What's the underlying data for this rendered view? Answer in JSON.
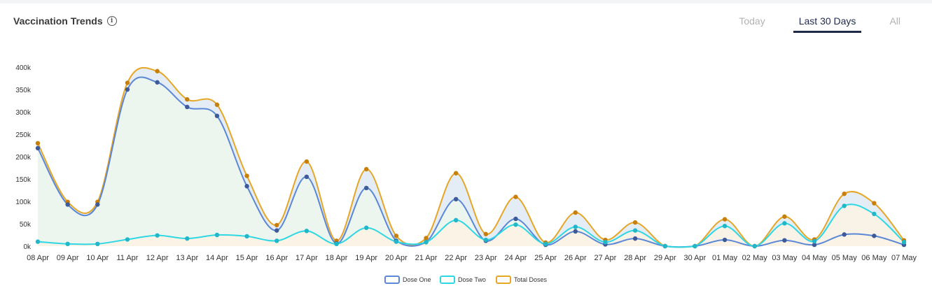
{
  "header": {
    "title": "Vaccination Trends",
    "info_icon": "info-icon",
    "tabs": [
      {
        "label": "Today",
        "active": false
      },
      {
        "label": "Last 30 Days",
        "active": true
      },
      {
        "label": "All",
        "active": false
      }
    ]
  },
  "colors": {
    "dose_one": "#5b87d6",
    "dose_two": "#2fd6e3",
    "total": "#e6a626",
    "dose_one_marker": "#3d5a99",
    "dose_two_marker": "#20b8c8",
    "total_marker": "#c77f0a",
    "fill_green": "#eef7ec",
    "fill_orange": "#fdf3e4",
    "fill_blue": "#dfeaf3"
  },
  "chart_data": {
    "type": "area",
    "categories": [
      "08 Apr",
      "09 Apr",
      "10 Apr",
      "11 Apr",
      "12 Apr",
      "13 Apr",
      "14 Apr",
      "15 Apr",
      "16 Apr",
      "17 Apr",
      "18 Apr",
      "19 Apr",
      "20 Apr",
      "21 Apr",
      "22 Apr",
      "23 Apr",
      "24 Apr",
      "25 Apr",
      "26 Apr",
      "27 Apr",
      "28 Apr",
      "29 Apr",
      "30 Apr",
      "01 May",
      "02 May",
      "03 May",
      "04 May",
      "05 May",
      "06 May",
      "07 May"
    ],
    "yticks": [
      "0k",
      "50k",
      "100k",
      "150k",
      "200k",
      "250k",
      "300k",
      "350k",
      "400k"
    ],
    "ylim": [
      0,
      400000
    ],
    "series": [
      {
        "name": "Dose One",
        "values": [
          219000,
          93000,
          93000,
          350000,
          366000,
          311000,
          291000,
          134000,
          35000,
          155000,
          6000,
          130000,
          12000,
          9000,
          105000,
          12000,
          61000,
          3000,
          33000,
          4000,
          17000,
          0,
          0,
          14000,
          0,
          13000,
          3000,
          26000,
          23000,
          3000
        ]
      },
      {
        "name": "Dose Two",
        "values": [
          10000,
          5000,
          5000,
          15000,
          24000,
          17000,
          25000,
          22000,
          12000,
          34000,
          5000,
          41000,
          10000,
          9000,
          58000,
          14000,
          48000,
          5000,
          43000,
          9000,
          35000,
          0,
          0,
          45000,
          0,
          51000,
          11000,
          90000,
          72000,
          9000
        ]
      },
      {
        "name": "Total Doses",
        "values": [
          230000,
          99000,
          99000,
          365000,
          391000,
          328000,
          316000,
          157000,
          47000,
          189000,
          12000,
          172000,
          23000,
          18000,
          163000,
          27000,
          110000,
          8000,
          75000,
          14000,
          53000,
          0,
          0,
          60000,
          0,
          66000,
          15000,
          117000,
          96000,
          13000
        ]
      }
    ],
    "legend": {
      "position": "bottom-center",
      "labels": [
        "Dose One",
        "Dose Two",
        "Total Doses"
      ]
    },
    "grid": false
  }
}
